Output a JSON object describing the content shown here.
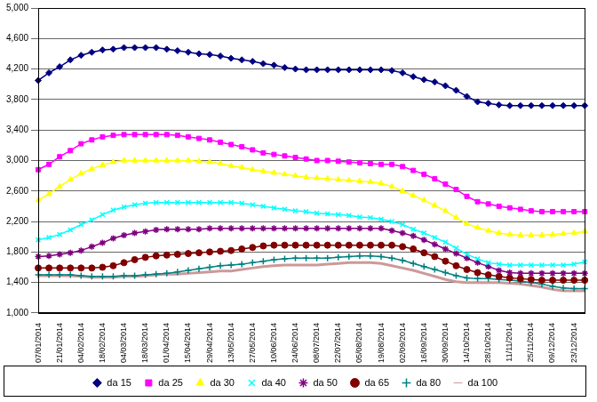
{
  "chart_data": {
    "type": "line",
    "categories": [
      "07/01/2014",
      null,
      "21/01/2014",
      null,
      "04/02/2014",
      null,
      "18/02/2014",
      null,
      "04/03/2014",
      null,
      "18/03/2014",
      null,
      "01/04/2014",
      null,
      "15/04/2014",
      null,
      "29/04/2014",
      null,
      "13/05/2014",
      null,
      "27/05/2014",
      null,
      "10/06/2014",
      null,
      "24/06/2014",
      null,
      "08/07/2014",
      null,
      "22/07/2014",
      null,
      "05/08/2014",
      null,
      "19/08/2014",
      null,
      "02/09/2014",
      null,
      "16/09/2014",
      null,
      "30/09/2014",
      null,
      "14/10/2014",
      null,
      "28/10/2014",
      null,
      "11/11/2014",
      null,
      "25/11/2014",
      null,
      "09/12/2014",
      null,
      "23/12/2014",
      null
    ],
    "series": [
      {
        "name": "da 15",
        "color": "#000080",
        "marker": "diamond",
        "line_style": "solid",
        "values": [
          4050,
          4150,
          4230,
          4320,
          4380,
          4420,
          4450,
          4460,
          4480,
          4480,
          4480,
          4480,
          4460,
          4440,
          4420,
          4400,
          4390,
          4370,
          4340,
          4320,
          4300,
          4270,
          4250,
          4220,
          4200,
          4190,
          4190,
          4190,
          4190,
          4190,
          4190,
          4190,
          4190,
          4180,
          4150,
          4100,
          4060,
          4030,
          3980,
          3920,
          3840,
          3770,
          3750,
          3730,
          3720,
          3720,
          3720,
          3720,
          3720,
          3720,
          3720,
          3720
        ]
      },
      {
        "name": "da 25",
        "color": "#ff00ff",
        "marker": "square",
        "line_style": "solid",
        "values": [
          2880,
          2950,
          3050,
          3130,
          3220,
          3270,
          3310,
          3330,
          3340,
          3340,
          3340,
          3340,
          3340,
          3330,
          3310,
          3290,
          3270,
          3240,
          3210,
          3180,
          3140,
          3100,
          3080,
          3060,
          3040,
          3020,
          3000,
          3000,
          2990,
          2980,
          2970,
          2960,
          2950,
          2950,
          2920,
          2870,
          2820,
          2760,
          2690,
          2620,
          2530,
          2460,
          2430,
          2400,
          2380,
          2360,
          2340,
          2330,
          2330,
          2330,
          2330,
          2330
        ]
      },
      {
        "name": "da 30",
        "color": "#ffff00",
        "marker": "triangle",
        "line_style": "solid",
        "values": [
          2480,
          2560,
          2660,
          2750,
          2830,
          2890,
          2940,
          2980,
          3000,
          3000,
          3000,
          3000,
          3000,
          3000,
          3000,
          2990,
          2980,
          2960,
          2930,
          2910,
          2880,
          2860,
          2840,
          2820,
          2800,
          2780,
          2770,
          2760,
          2750,
          2740,
          2730,
          2720,
          2700,
          2660,
          2600,
          2540,
          2480,
          2410,
          2340,
          2250,
          2170,
          2120,
          2080,
          2050,
          2030,
          2020,
          2020,
          2020,
          2030,
          2040,
          2050,
          2070
        ]
      },
      {
        "name": "da 40",
        "color": "#00ffff",
        "marker": "x",
        "line_style": "solid",
        "values": [
          1960,
          1990,
          2030,
          2090,
          2160,
          2220,
          2290,
          2350,
          2390,
          2420,
          2440,
          2450,
          2450,
          2450,
          2450,
          2450,
          2450,
          2450,
          2450,
          2440,
          2420,
          2400,
          2380,
          2360,
          2340,
          2330,
          2310,
          2300,
          2290,
          2280,
          2260,
          2250,
          2230,
          2200,
          2160,
          2100,
          2050,
          1990,
          1930,
          1850,
          1770,
          1710,
          1660,
          1640,
          1630,
          1630,
          1630,
          1630,
          1630,
          1630,
          1640,
          1670
        ]
      },
      {
        "name": "da 50",
        "color": "#800080",
        "marker": "star",
        "line_style": "solid",
        "values": [
          1740,
          1750,
          1770,
          1790,
          1820,
          1870,
          1920,
          1980,
          2020,
          2050,
          2070,
          2090,
          2100,
          2100,
          2100,
          2100,
          2110,
          2110,
          2110,
          2110,
          2110,
          2110,
          2110,
          2110,
          2110,
          2110,
          2110,
          2110,
          2110,
          2110,
          2110,
          2110,
          2110,
          2080,
          2050,
          2010,
          1960,
          1900,
          1840,
          1780,
          1720,
          1660,
          1610,
          1560,
          1530,
          1520,
          1520,
          1520,
          1520,
          1520,
          1520,
          1520
        ]
      },
      {
        "name": "da 65",
        "color": "#800000",
        "marker": "circle",
        "line_style": "solid",
        "values": [
          1590,
          1590,
          1590,
          1590,
          1590,
          1590,
          1600,
          1620,
          1660,
          1700,
          1730,
          1750,
          1760,
          1770,
          1780,
          1790,
          1800,
          1810,
          1820,
          1840,
          1860,
          1880,
          1890,
          1890,
          1890,
          1890,
          1890,
          1890,
          1890,
          1890,
          1890,
          1890,
          1890,
          1890,
          1870,
          1840,
          1790,
          1740,
          1680,
          1620,
          1570,
          1530,
          1500,
          1480,
          1460,
          1450,
          1440,
          1430,
          1430,
          1430,
          1430,
          1430
        ]
      },
      {
        "name": "da 80",
        "color": "#008080",
        "marker": "plus",
        "line_style": "solid",
        "values": [
          1500,
          1500,
          1500,
          1500,
          1490,
          1480,
          1480,
          1480,
          1490,
          1490,
          1500,
          1510,
          1520,
          1540,
          1560,
          1580,
          1600,
          1620,
          1630,
          1640,
          1660,
          1680,
          1700,
          1710,
          1720,
          1720,
          1720,
          1720,
          1730,
          1740,
          1750,
          1750,
          1740,
          1720,
          1690,
          1650,
          1610,
          1570,
          1530,
          1490,
          1460,
          1450,
          1450,
          1440,
          1430,
          1420,
          1400,
          1380,
          1350,
          1330,
          1320,
          1320
        ]
      },
      {
        "name": "da 100",
        "color": "#cc9999",
        "marker": "none",
        "line_style": "solid",
        "values": [
          1490,
          1490,
          1490,
          1490,
          1480,
          1470,
          1470,
          1470,
          1480,
          1480,
          1490,
          1500,
          1510,
          1510,
          1520,
          1530,
          1540,
          1550,
          1550,
          1570,
          1590,
          1610,
          1620,
          1630,
          1630,
          1630,
          1630,
          1640,
          1650,
          1660,
          1660,
          1660,
          1650,
          1620,
          1590,
          1560,
          1520,
          1480,
          1440,
          1410,
          1400,
          1400,
          1400,
          1400,
          1390,
          1380,
          1360,
          1340,
          1310,
          1290,
          1290,
          1290
        ]
      }
    ],
    "ylim": [
      1000,
      5000
    ],
    "yticks": [
      {
        "value": 1000,
        "label": "1,000"
      },
      {
        "value": 1400,
        "label": "1,400"
      },
      {
        "value": 1800,
        "label": "1,800"
      },
      {
        "value": 2200,
        "label": "2,200"
      },
      {
        "value": 2600,
        "label": "2,600"
      },
      {
        "value": 3000,
        "label": "3,000"
      },
      {
        "value": 3400,
        "label": "3,400"
      },
      {
        "value": 3800,
        "label": "3,800"
      },
      {
        "value": 4200,
        "label": "4,200"
      },
      {
        "value": 4600,
        "label": "4,600"
      },
      {
        "value": 5000,
        "label": "5,000"
      }
    ],
    "grid": true,
    "legend": "bottom"
  }
}
